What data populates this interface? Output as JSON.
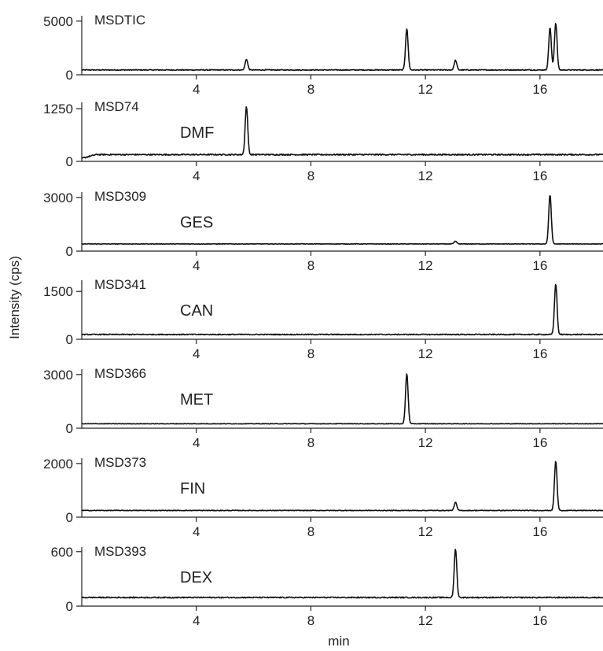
{
  "chart_data": {
    "type": "line",
    "xlabel": "min",
    "ylabel": "Intensity (cps)",
    "xlim": [
      0,
      18.2
    ],
    "xticks": [
      4,
      8,
      12,
      16
    ],
    "x_tick_labels": [
      "4",
      "8",
      "12",
      "16"
    ],
    "panels": [
      {
        "channel": "MSDTIC",
        "compound": "",
        "ylim": [
          0,
          5500
        ],
        "yticks": [
          0,
          5000
        ],
        "y_tick_labels": [
          "0",
          "5000"
        ],
        "baseline": 450,
        "noise": 40,
        "peaks": [
          {
            "x": 5.75,
            "y": 1450
          },
          {
            "x": 11.35,
            "y": 4300
          },
          {
            "x": 13.05,
            "y": 1350
          },
          {
            "x": 16.35,
            "y": 4400
          },
          {
            "x": 16.55,
            "y": 4850
          }
        ]
      },
      {
        "channel": "MSD74",
        "compound": "DMF",
        "ylim": [
          0,
          1400
        ],
        "yticks": [
          0,
          1250
        ],
        "y_tick_labels": [
          "0",
          "1250"
        ],
        "baseline": 160,
        "noise": 15,
        "ramp": true,
        "peaks": [
          {
            "x": 5.75,
            "y": 1300
          }
        ]
      },
      {
        "channel": "MSD309",
        "compound": "GES",
        "ylim": [
          0,
          3300
        ],
        "yticks": [
          0,
          3000
        ],
        "y_tick_labels": [
          "0",
          "3000"
        ],
        "baseline": 400,
        "noise": 15,
        "peaks": [
          {
            "x": 13.05,
            "y": 550
          },
          {
            "x": 16.35,
            "y": 3150
          }
        ]
      },
      {
        "channel": "MSD341",
        "compound": "CAN",
        "ylim": [
          0,
          1850
        ],
        "yticks": [
          0,
          1500
        ],
        "y_tick_labels": [
          "0",
          "1500"
        ],
        "baseline": 150,
        "noise": 15,
        "peaks": [
          {
            "x": 16.55,
            "y": 1750
          }
        ]
      },
      {
        "channel": "MSD366",
        "compound": "MET",
        "ylim": [
          0,
          3300
        ],
        "yticks": [
          0,
          3000
        ],
        "y_tick_labels": [
          "0",
          "3000"
        ],
        "baseline": 250,
        "noise": 15,
        "peaks": [
          {
            "x": 11.35,
            "y": 3050
          }
        ]
      },
      {
        "channel": "MSD373",
        "compound": "FIN",
        "ylim": [
          0,
          2200
        ],
        "yticks": [
          0,
          2000
        ],
        "y_tick_labels": [
          "0",
          "2000"
        ],
        "baseline": 250,
        "noise": 12,
        "peaks": [
          {
            "x": 13.05,
            "y": 550
          },
          {
            "x": 16.55,
            "y": 2100
          }
        ]
      },
      {
        "channel": "MSD393",
        "compound": "DEX",
        "ylim": [
          0,
          650
        ],
        "yticks": [
          0,
          600
        ],
        "y_tick_labels": [
          "0",
          "600"
        ],
        "baseline": 95,
        "noise": 6,
        "peaks": [
          {
            "x": 13.05,
            "y": 630
          }
        ]
      }
    ]
  }
}
